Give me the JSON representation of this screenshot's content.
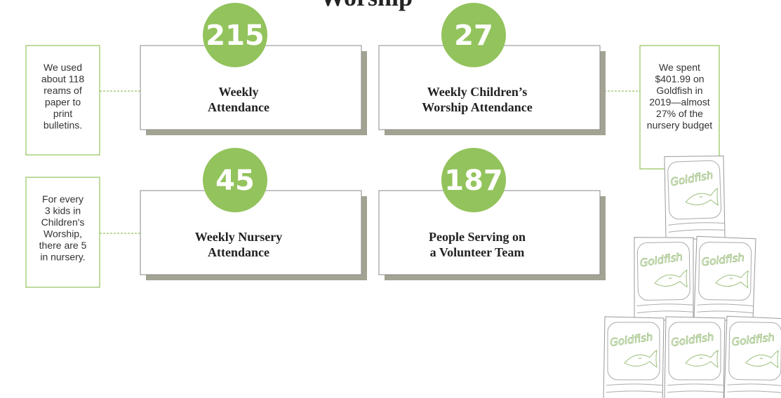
{
  "header": {
    "title": "Worship"
  },
  "stats": [
    {
      "number": 215,
      "label": [
        "Weekly",
        "Attendance"
      ]
    },
    {
      "number": 27,
      "label": [
        "Weekly Children’s",
        "Worship Attendance"
      ]
    },
    {
      "number": 45,
      "label": [
        "Weekly Nursery",
        "Attendance"
      ]
    },
    {
      "number": 187,
      "label": [
        "People Serving on",
        "a Volunteer Team"
      ]
    }
  ],
  "notes": [
    [
      "We used",
      "about 118",
      "reams of",
      "paper to",
      "print",
      "bulletins."
    ],
    [
      "For every",
      "3 kids in",
      "Children's",
      "Worship,",
      "there are 5",
      "in nursery."
    ],
    [
      "We spent",
      "$401.99 on",
      "Goldfish in",
      "2019—almost",
      "27% of the",
      "nursery budget"
    ]
  ],
  "bag_label": "Goldfish"
}
